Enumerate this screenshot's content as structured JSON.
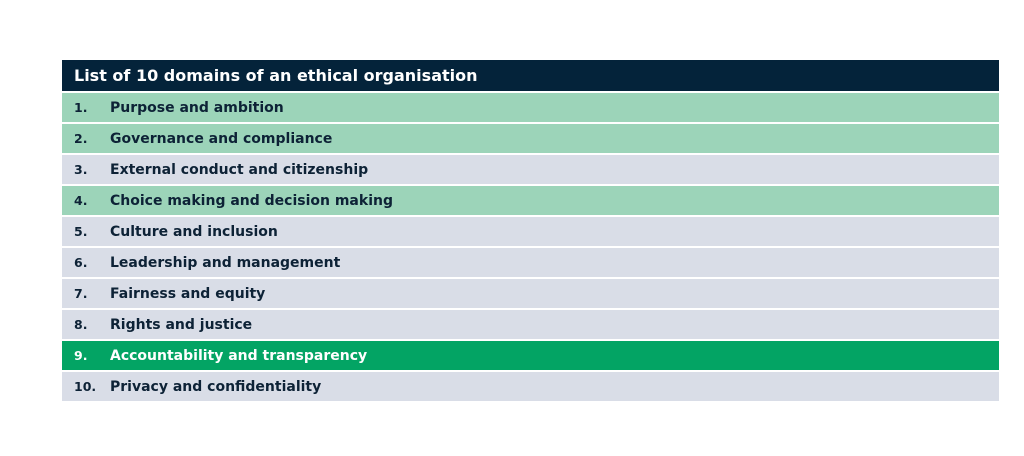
{
  "table": {
    "title": "List of 10 domains of an ethical organisation",
    "rows": [
      {
        "num": "1.",
        "label": "Purpose and ambition",
        "style": "mint"
      },
      {
        "num": "2.",
        "label": "Governance and compliance",
        "style": "mint"
      },
      {
        "num": "3.",
        "label": "External conduct and citizenship",
        "style": "grey"
      },
      {
        "num": "4.",
        "label": "Choice making and decision making",
        "style": "mint"
      },
      {
        "num": "5.",
        "label": "Culture and inclusion",
        "style": "grey"
      },
      {
        "num": "6.",
        "label": "Leadership and management",
        "style": "grey"
      },
      {
        "num": "7.",
        "label": "Fairness and equity",
        "style": "grey"
      },
      {
        "num": "8.",
        "label": "Rights and justice",
        "style": "grey"
      },
      {
        "num": "9.",
        "label": "Accountability and transparency",
        "style": "green"
      },
      {
        "num": "10.",
        "label": "Privacy and confidentiality",
        "style": "grey"
      }
    ],
    "colors": {
      "header": "#04233a",
      "grey": "#d9dde7",
      "mint": "#9cd4b9",
      "green": "#03a464"
    }
  }
}
